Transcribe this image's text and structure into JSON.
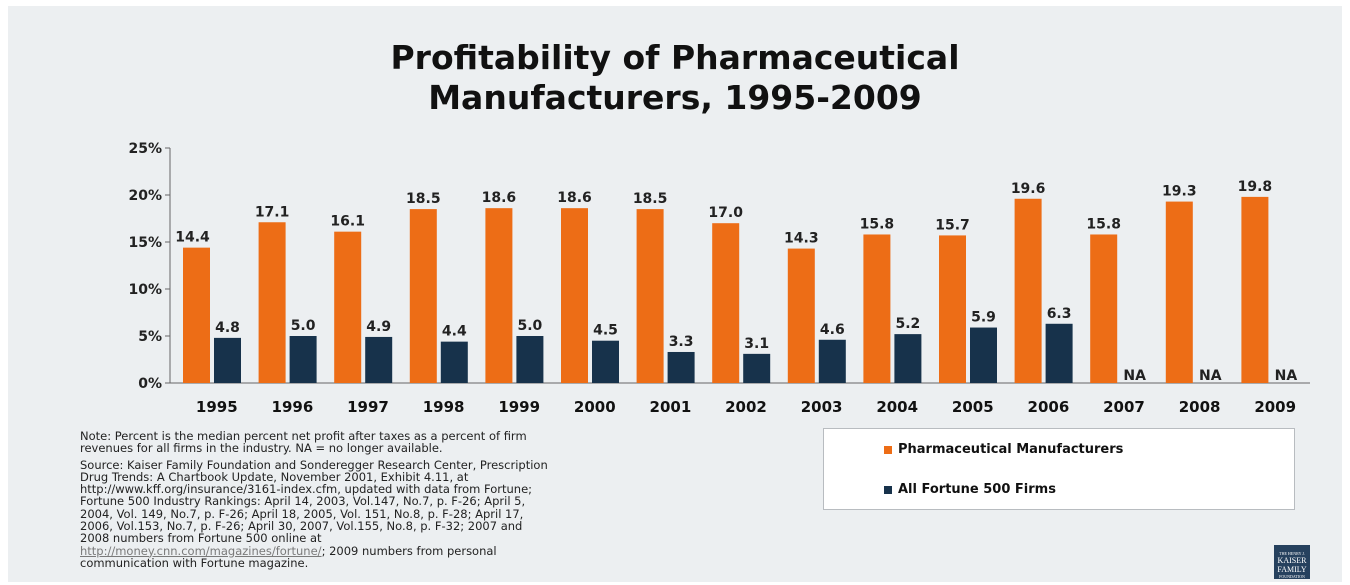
{
  "colors": {
    "pharma": "#ed6d16",
    "fortune": "#17324b",
    "axis": "#666666",
    "background": "#eceff1"
  },
  "chart_data": {
    "type": "bar",
    "title": "Profitability of Pharmaceutical Manufacturers, 1995-2009",
    "title_lines": [
      "Profitability of Pharmaceutical",
      "Manufacturers, 1995-2009"
    ],
    "categories": [
      "1995",
      "1996",
      "1997",
      "1998",
      "1999",
      "2000",
      "2001",
      "2002",
      "2003",
      "2004",
      "2005",
      "2006",
      "2007",
      "2008",
      "2009"
    ],
    "series": [
      {
        "name": "Pharmaceutical Manufacturers",
        "color": "#ed6d16",
        "values": [
          14.4,
          17.1,
          16.1,
          18.5,
          18.6,
          18.6,
          18.5,
          17.0,
          14.3,
          15.8,
          15.7,
          19.6,
          15.8,
          19.3,
          19.8
        ],
        "labels": [
          "14.4",
          "17.1",
          "16.1",
          "18.5",
          "18.6",
          "18.6",
          "18.5",
          "17.0",
          "14.3",
          "15.8",
          "15.7",
          "19.6",
          "15.8",
          "19.3",
          "19.8"
        ]
      },
      {
        "name": "All Fortune 500 Firms",
        "color": "#17324b",
        "values": [
          4.8,
          5.0,
          4.9,
          4.4,
          5.0,
          4.5,
          3.3,
          3.1,
          4.6,
          5.2,
          5.9,
          6.3,
          null,
          null,
          null
        ],
        "labels": [
          "4.8",
          "5.0",
          "4.9",
          "4.4",
          "5.0",
          "4.5",
          "3.3",
          "3.1",
          "4.6",
          "5.2",
          "5.9",
          "6.3",
          "NA",
          "NA",
          "NA"
        ]
      }
    ],
    "yticks": [
      "0%",
      "5%",
      "10%",
      "15%",
      "20%",
      "25%"
    ],
    "ytick_values": [
      0,
      5,
      10,
      15,
      20,
      25
    ],
    "ylim": [
      0,
      25
    ],
    "grid": false,
    "legend_position": "bottom-right"
  },
  "notes": {
    "note": "Note: Percent is the median percent net profit after taxes as a percent of firm\nrevenues for all firms in the industry.  NA = no longer available.",
    "source": "Source: Kaiser Family Foundation and Sonderegger Research Center, Prescription\nDrug Trends: A Chartbook Update, November 2001, Exhibit 4.11, at\nhttp://www.kff.org/insurance/3161-index.cfm, updated with data from Fortune;\nFortune 500 Industry Rankings: April 14, 2003, Vol.147, No.7, p. F-26; April 5,\n2004, Vol. 149, No.7, p. F-26; April 18, 2005, Vol. 151, No.8, p. F-28; April 17,\n2006, Vol.153, No.7, p. F-26; April 30, 2007, Vol.155, No.8, p. F-32; 2007 and\n2008 numbers from Fortune 500 online at",
    "link": "http://money.cnn.com/magazines/fortune/",
    "source_end": "; 2009 numbers from personal\ncommunication with Fortune magazine."
  },
  "logo": {
    "lines": [
      "THE HENRY J.",
      "KAISER",
      "FAMILY",
      "FOUNDATION"
    ]
  }
}
